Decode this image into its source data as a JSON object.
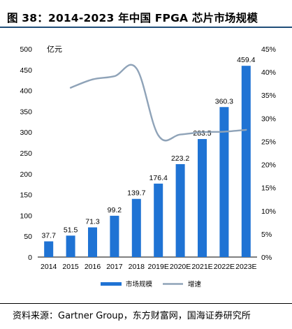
{
  "header": {
    "title": "图 38：2014-2023 年中国 FPGA 芯片市场规模"
  },
  "footer": {
    "source": "资料来源：Gartner Group，东方财富网，国海证券研究所"
  },
  "chart_data": {
    "type": "bar",
    "categories": [
      "2014",
      "2015",
      "2016",
      "2017",
      "2018",
      "2019E",
      "2020E",
      "2021E",
      "2022E",
      "2023E"
    ],
    "series": [
      {
        "name": "市场规模",
        "type": "bar",
        "axis": "left",
        "values": [
          37.7,
          51.5,
          71.3,
          99.2,
          139.7,
          176.4,
          223.2,
          283.5,
          360.3,
          459.4
        ],
        "labels": [
          "37.7",
          "51.5",
          "71.3",
          "99.2",
          "139.7",
          "176.4",
          "223.2",
          "283.5",
          "360.3",
          "459.4"
        ],
        "color": "#1f73d4"
      },
      {
        "name": "增速",
        "type": "line",
        "axis": "right",
        "values": [
          null,
          36.6,
          38.4,
          39.1,
          40.8,
          26.3,
          26.5,
          27.0,
          27.1,
          27.5
        ],
        "color": "#8fa3b8"
      }
    ],
    "left_axis": {
      "unit": "亿元",
      "ylim": [
        0,
        500
      ],
      "ticks": [
        "0",
        "50",
        "100",
        "150",
        "200",
        "250",
        "300",
        "350",
        "400",
        "450",
        "500"
      ]
    },
    "right_axis": {
      "ylim": [
        0,
        45
      ],
      "ticks": [
        "0%",
        "5%",
        "10%",
        "15%",
        "20%",
        "25%",
        "30%",
        "35%",
        "40%",
        "45%"
      ]
    },
    "grid": false,
    "legend_position": "bottom"
  }
}
